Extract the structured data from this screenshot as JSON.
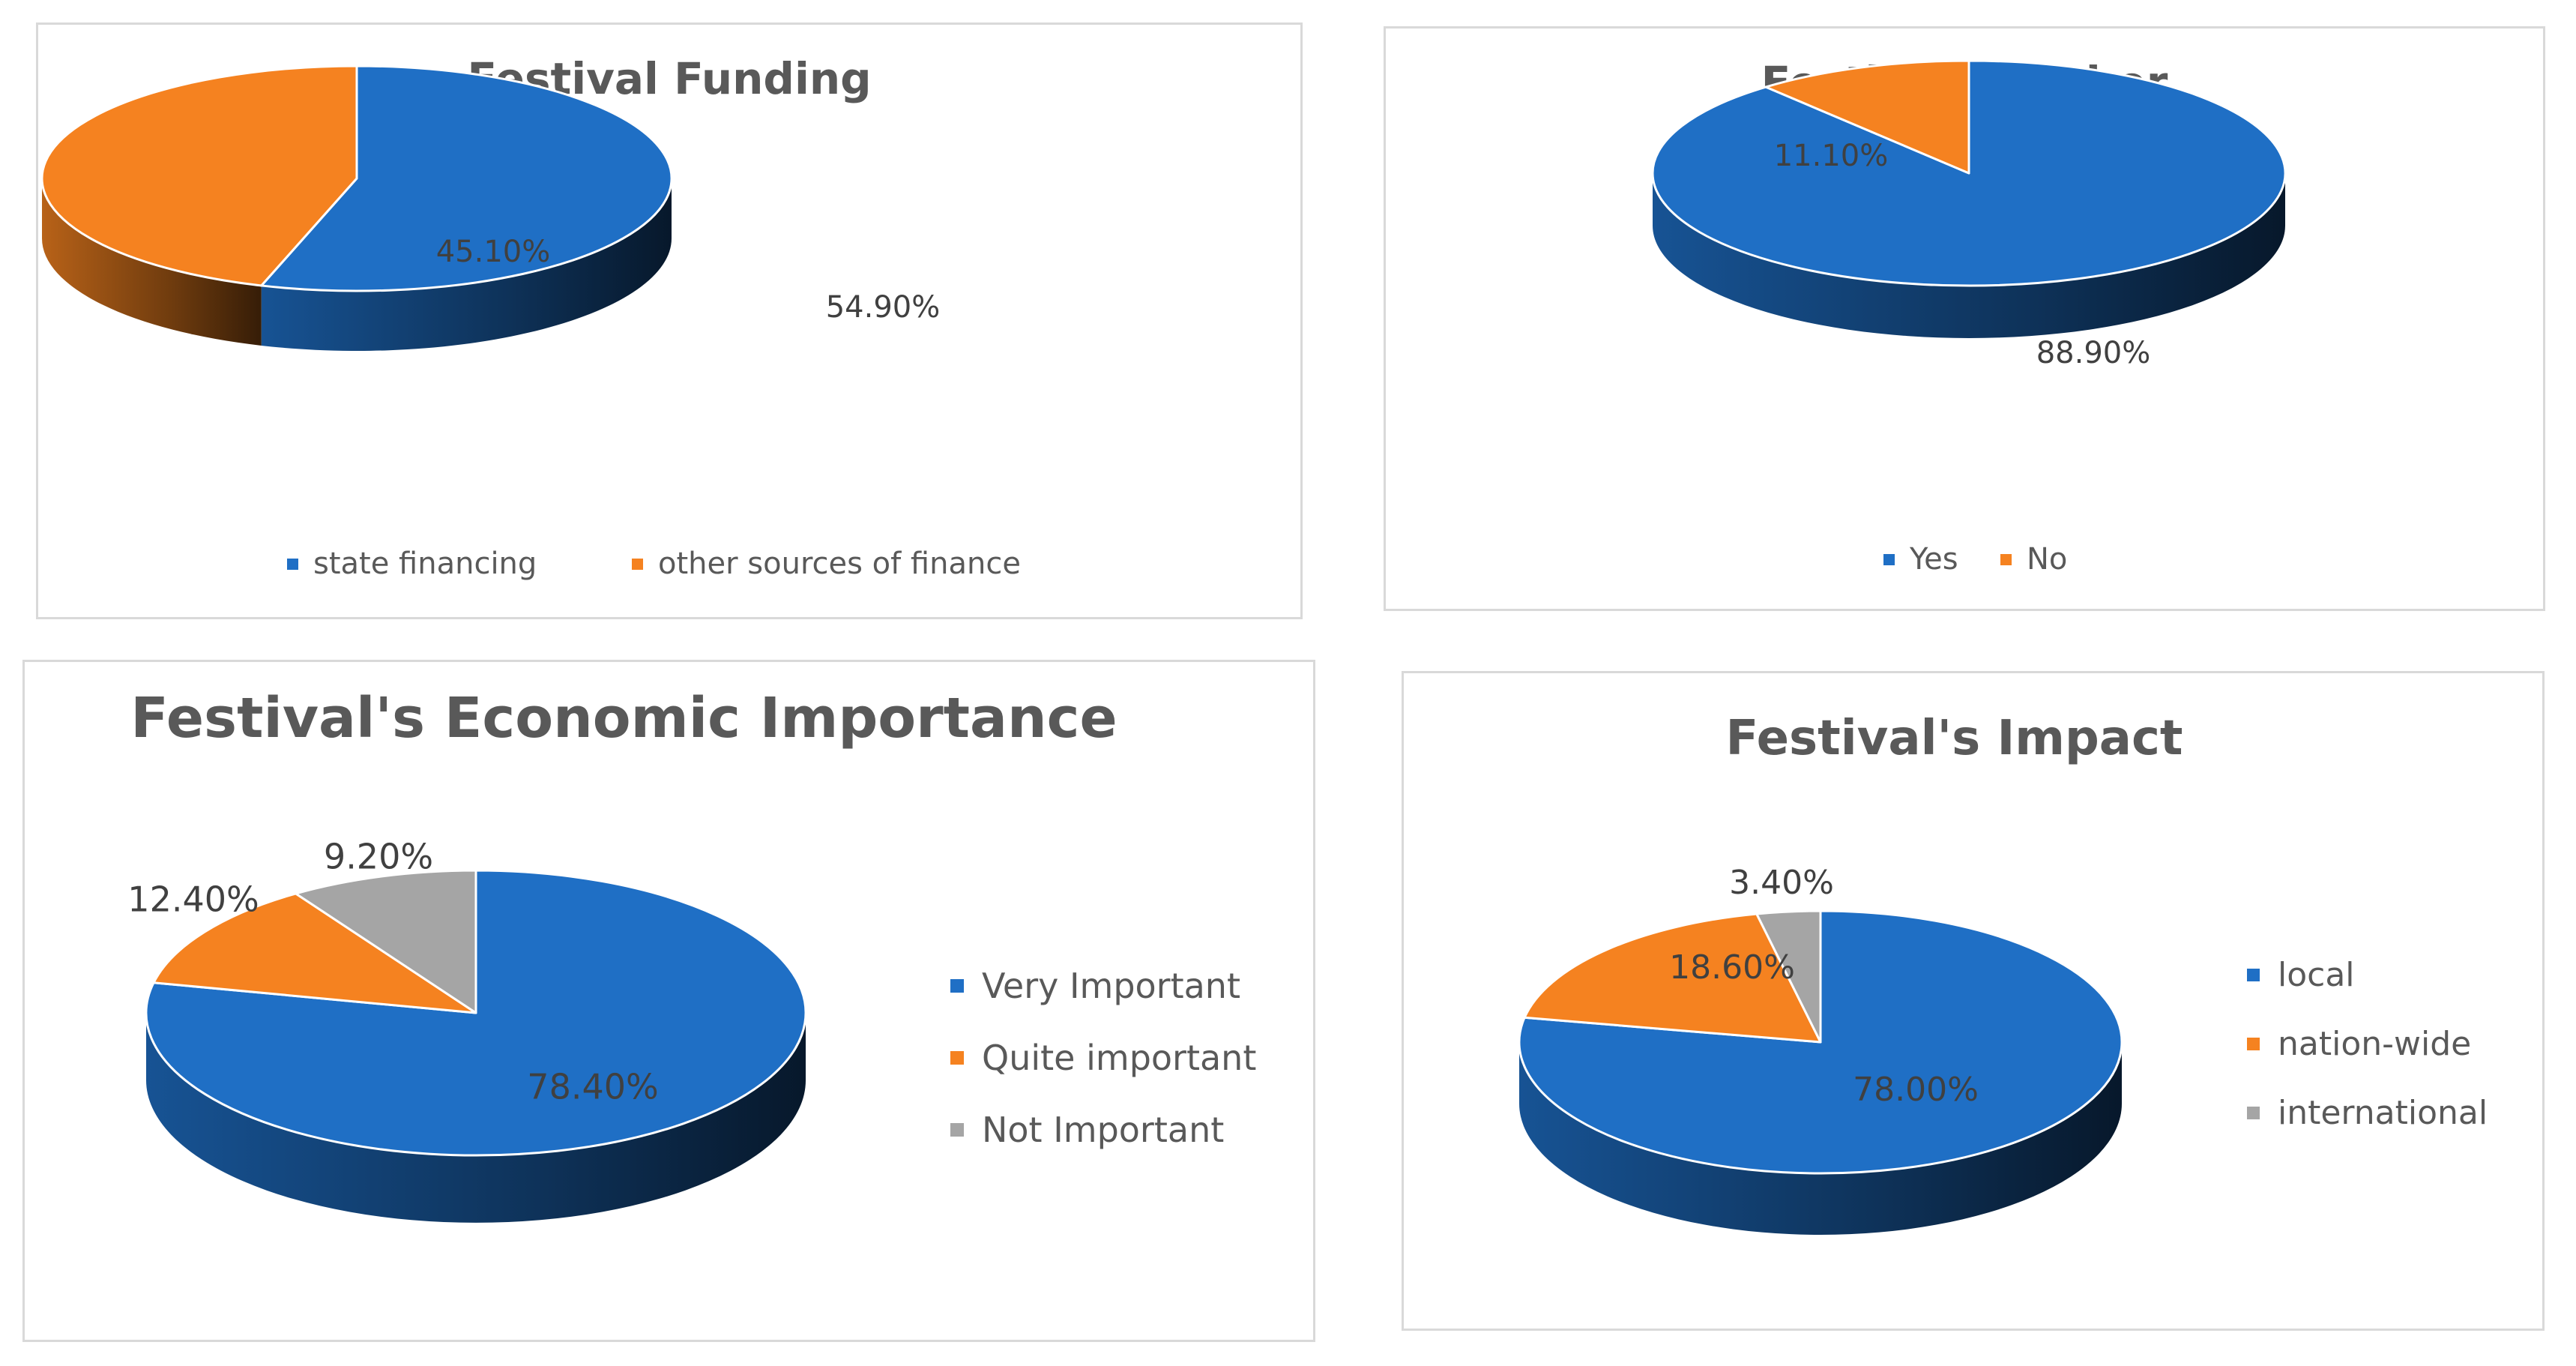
{
  "chart_data": [
    {
      "type": "pie",
      "title": "Festival Funding",
      "categories": [
        "state financing",
        "other sources of finance"
      ],
      "values": [
        54.9,
        45.1
      ],
      "data_labels": [
        "54.90%",
        "45.10%"
      ],
      "colors": [
        "#1f6fc5",
        "#f58220"
      ],
      "legend": "bottom"
    },
    {
      "type": "pie",
      "title": "Festival Member",
      "categories": [
        "Yes",
        "No"
      ],
      "values": [
        88.9,
        11.1
      ],
      "data_labels": [
        "88.90%",
        "11.10%"
      ],
      "colors": [
        "#1f6fc5",
        "#f58220"
      ],
      "legend": "bottom"
    },
    {
      "type": "pie",
      "title": "Festival's Economic Importance",
      "categories": [
        "Very Important",
        "Quite important",
        "Not Important"
      ],
      "values": [
        78.4,
        12.4,
        9.2
      ],
      "data_labels": [
        "78.40%",
        "12.40%",
        "9.20%"
      ],
      "colors": [
        "#1f6fc5",
        "#f58220",
        "#a5a5a5"
      ],
      "legend": "right"
    },
    {
      "type": "pie",
      "title": "Festival's Impact",
      "categories": [
        "local",
        "nation-wide",
        "international"
      ],
      "values": [
        78.0,
        18.6,
        3.4
      ],
      "data_labels": [
        "78.00%",
        "18.60%",
        "3.40%"
      ],
      "colors": [
        "#1f6fc5",
        "#f58220",
        "#a5a5a5"
      ],
      "legend": "right"
    }
  ]
}
